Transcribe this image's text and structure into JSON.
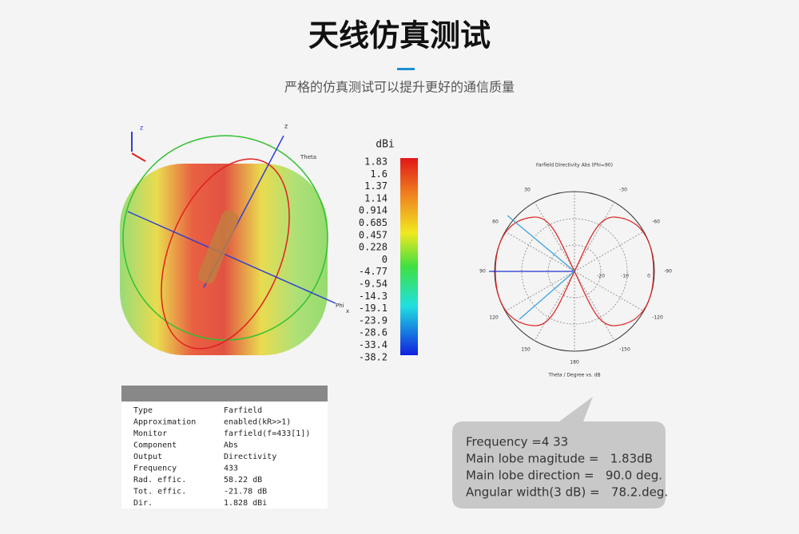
{
  "header": {
    "title": "天线仿真测试",
    "subtitle": "严格的仿真测试可以提升更好的通信质量"
  },
  "pattern3d": {
    "axis_labels": [
      "z",
      "z",
      "Theta",
      "Phi",
      "x"
    ]
  },
  "colorbar": {
    "unit": "dBi",
    "labels": [
      "1.83",
      "1.6",
      "1.37",
      "1.14",
      "0.914",
      "0.685",
      "0.457",
      "0.228",
      "0",
      "-4.77",
      "-9.54",
      "-14.3",
      "-19.1",
      "-23.9",
      "-28.6",
      "-33.4",
      "-38.2"
    ]
  },
  "polar": {
    "title": "Farfield Directivity Abs (Phi=90)",
    "angle_labels": [
      "30",
      "-30",
      "60",
      "-60",
      "90",
      "-90",
      "120",
      "-120",
      "150",
      "-150",
      "180"
    ],
    "radial_labels": [
      "-20",
      "-10",
      "0"
    ],
    "axis_label": "Theta / Degree vs. dB"
  },
  "table": {
    "rows": [
      [
        "Type",
        "Farfield"
      ],
      [
        "Approximation",
        "enabled(kR>>1)"
      ],
      [
        "Monitor",
        "farfield(f=433[1])"
      ],
      [
        "Component",
        "Abs"
      ],
      [
        "Output",
        "Directivity"
      ],
      [
        "Frequency",
        "433"
      ],
      [
        "Rad. effic.",
        "58.22 dB"
      ],
      [
        "Tot. effic.",
        "-21.78 dB"
      ],
      [
        "Dir.",
        "1.828 dBi"
      ]
    ]
  },
  "summary": {
    "lines": [
      "Frequency =4 33",
      "Main lobe magitude =   1.83dB",
      "Main lobe direction =   90.0 deg.",
      "Angular width(3 dB) =   78.2.deg."
    ]
  }
}
